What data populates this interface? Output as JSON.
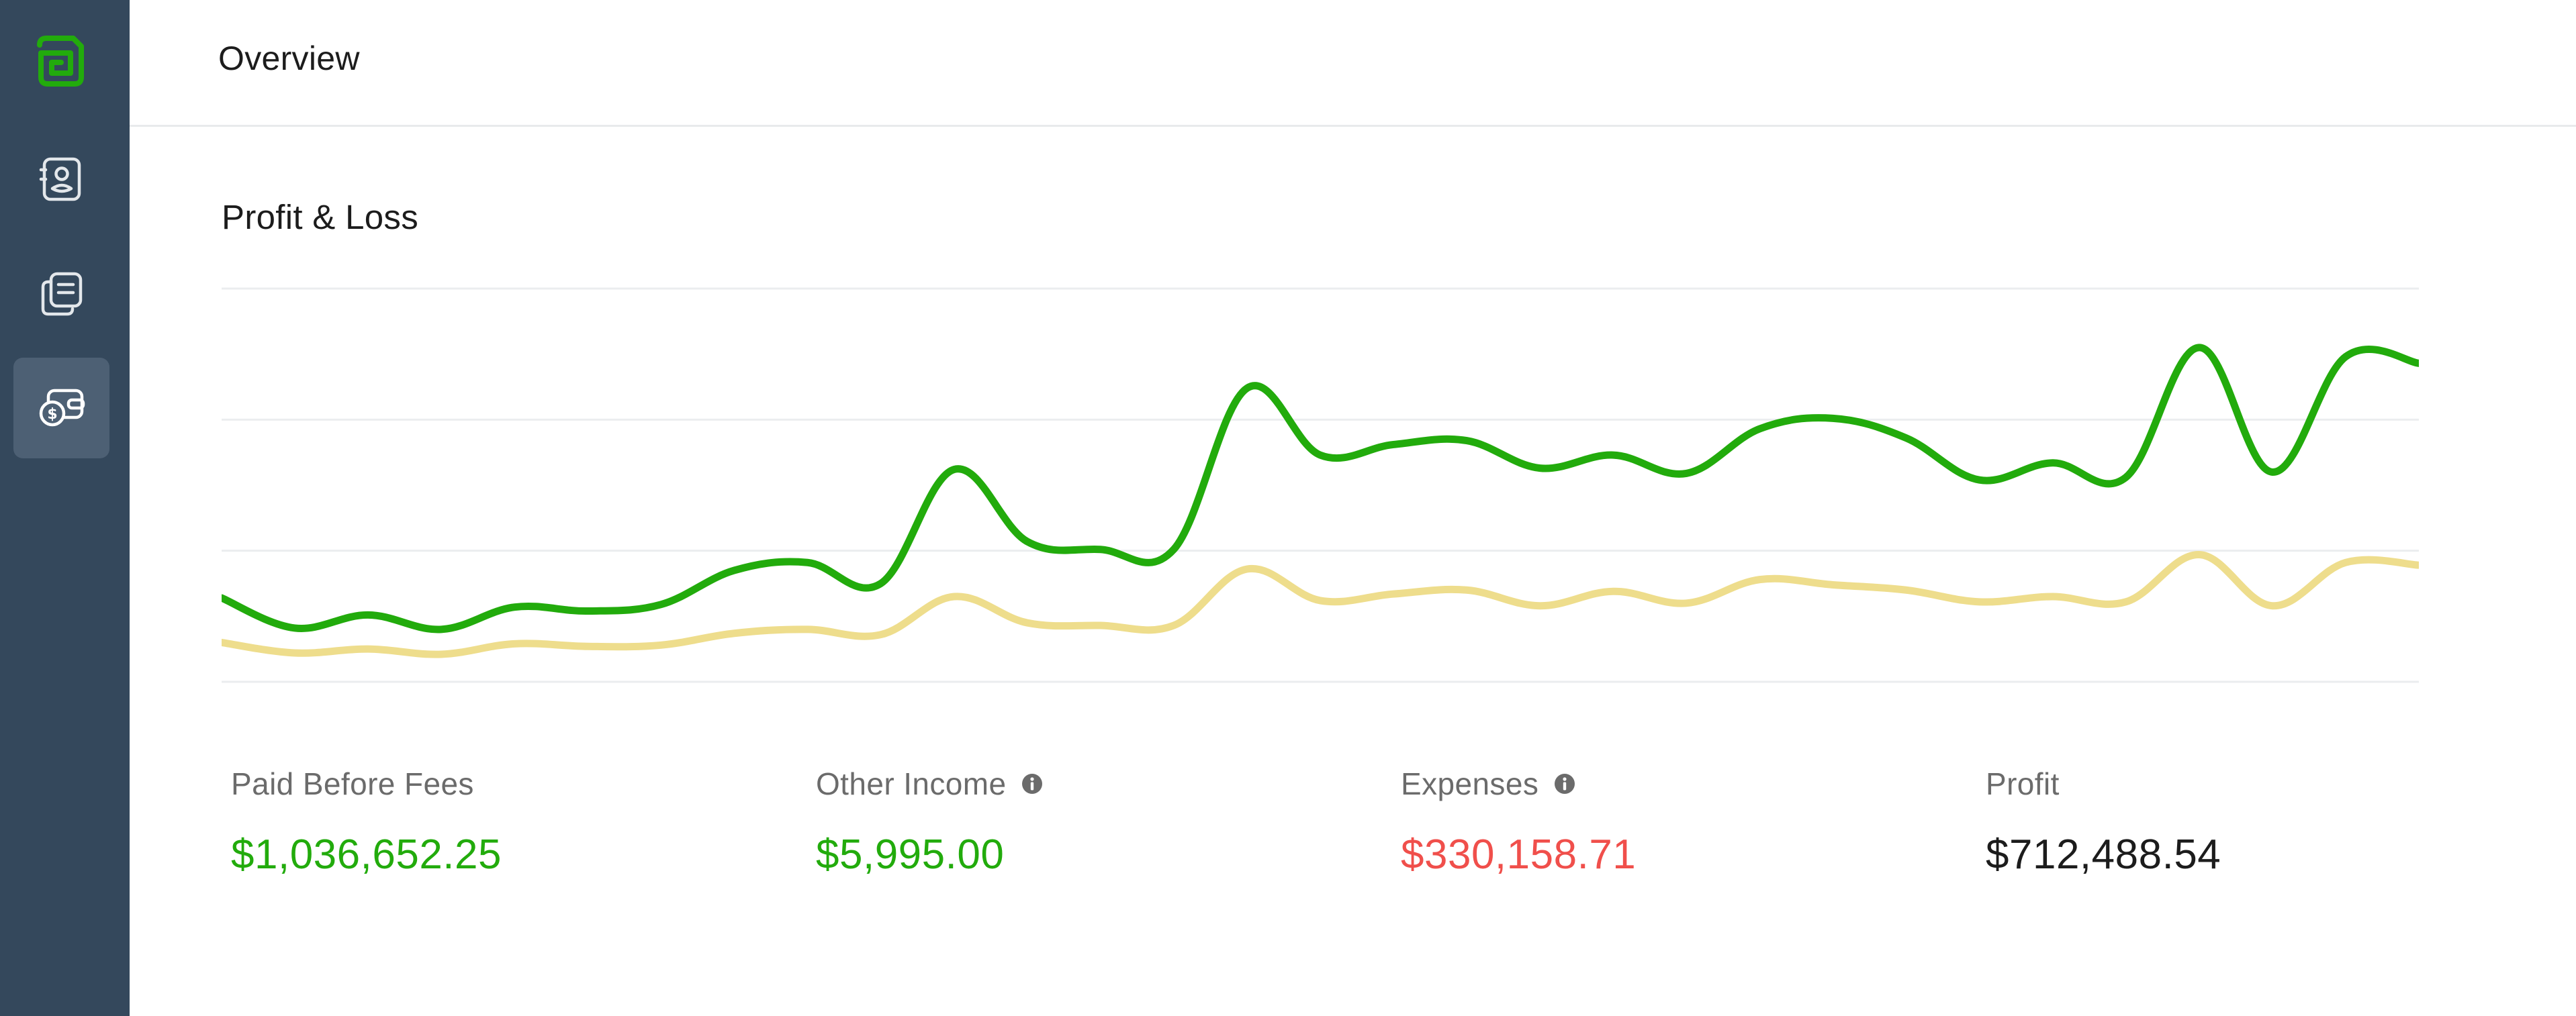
{
  "header": {
    "title": "Overview"
  },
  "sidebar": {
    "items": [
      {
        "icon": "logo-icon"
      },
      {
        "icon": "contact-card-icon"
      },
      {
        "icon": "documents-icon"
      },
      {
        "icon": "payments-icon",
        "active": true
      }
    ]
  },
  "section": {
    "title": "Profit & Loss"
  },
  "colors": {
    "sidebar": "#34485c",
    "sidebar_active": "#4d6074",
    "brand_green": "#22ab0c",
    "income_line": "#22ab0c",
    "secondary_line": "#eedd8c",
    "expense_red": "#f04f4b",
    "text_dark": "#1c1c1c",
    "text_muted": "#6b6b6b"
  },
  "stats": [
    {
      "label": "Paid Before Fees",
      "value": "$1,036,652.25",
      "color": "#22ab0c",
      "info": false
    },
    {
      "label": "Other Income",
      "value": "$5,995.00",
      "color": "#22ab0c",
      "info": true
    },
    {
      "label": "Expenses",
      "value": "$330,158.71",
      "color": "#f04f4b",
      "info": true
    },
    {
      "label": "Profit",
      "value": "$712,488.54",
      "color": "#1c1c1c",
      "info": false
    }
  ],
  "chart_data": {
    "type": "line",
    "ylim": [
      0,
      3
    ],
    "grid": true,
    "gridlines": 4,
    "series": [
      {
        "color": "#22ab0c",
        "values": [
          0.64,
          0.41,
          0.51,
          0.4,
          0.57,
          0.54,
          0.59,
          0.85,
          0.91,
          0.75,
          1.62,
          1.07,
          1.01,
          1.01,
          2.24,
          1.73,
          1.81,
          1.84,
          1.63,
          1.73,
          1.59,
          1.93,
          2.01,
          1.86,
          1.54,
          1.67,
          1.56,
          2.55,
          1.6,
          2.48,
          2.43
        ]
      },
      {
        "color": "#eedd8c",
        "values": [
          0.3,
          0.22,
          0.25,
          0.21,
          0.29,
          0.27,
          0.28,
          0.37,
          0.4,
          0.36,
          0.65,
          0.45,
          0.43,
          0.43,
          0.86,
          0.62,
          0.67,
          0.7,
          0.58,
          0.69,
          0.6,
          0.78,
          0.74,
          0.7,
          0.61,
          0.65,
          0.61,
          0.97,
          0.58,
          0.91,
          0.89
        ]
      }
    ]
  }
}
